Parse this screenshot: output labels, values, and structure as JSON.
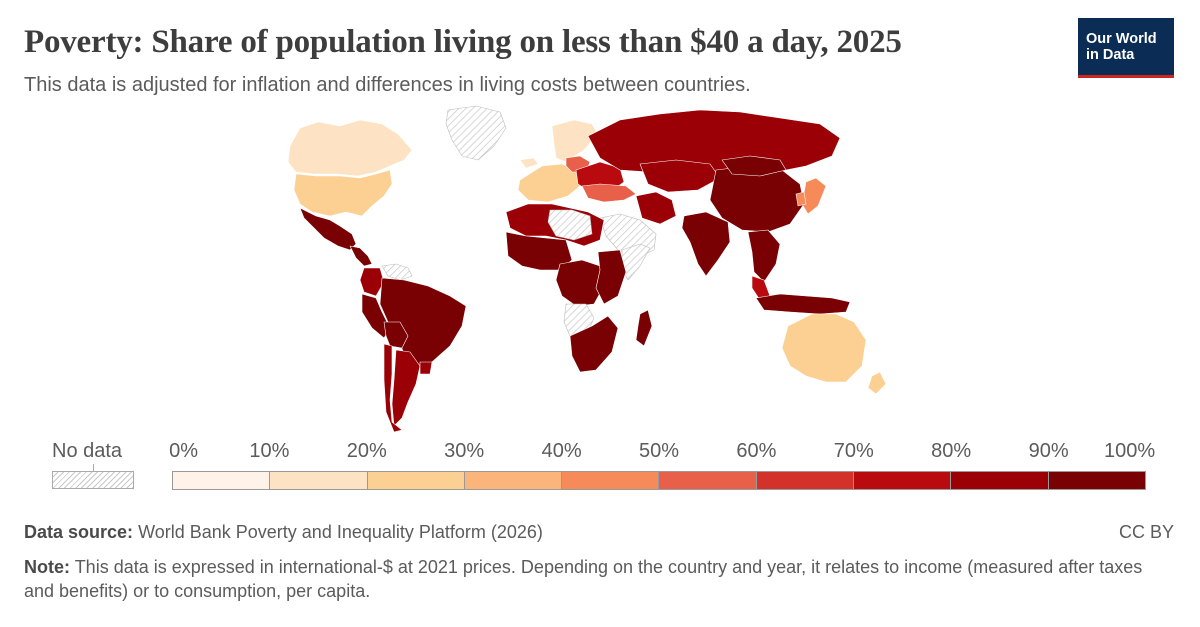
{
  "header": {
    "title": "Poverty: Share of population living on less than $40 a day, 2025",
    "subtitle": "This data is adjusted for inflation and differences in living costs between countries."
  },
  "logo": {
    "line1": "Our World",
    "line2": "in Data",
    "bg": "#0b2c55",
    "accent": "#ce261e"
  },
  "legend": {
    "no_data_label": "No data",
    "ticks": [
      "0%",
      "10%",
      "20%",
      "30%",
      "40%",
      "50%",
      "60%",
      "70%",
      "80%",
      "90%",
      "100%"
    ],
    "bin_colors": [
      "#fff3e9",
      "#fde3c3",
      "#fccf93",
      "#fbb47a",
      "#f68a58",
      "#e8604a",
      "#d3322a",
      "#b80a0f",
      "#9b0006",
      "#790003"
    ],
    "no_data_pattern": "diagonal-hatch-grey"
  },
  "chart_data": {
    "type": "choropleth",
    "unit": "%",
    "scale_range": [
      0,
      100
    ],
    "bins": [
      0,
      10,
      20,
      30,
      40,
      50,
      60,
      70,
      80,
      90,
      100
    ],
    "regions": [
      {
        "name": "Canada",
        "bin": "10-20%"
      },
      {
        "name": "United States",
        "bin": "20-30%"
      },
      {
        "name": "Mexico",
        "bin": "90-100%"
      },
      {
        "name": "Central America",
        "bin": "90-100%"
      },
      {
        "name": "Venezuela",
        "bin": "no data"
      },
      {
        "name": "Colombia",
        "bin": "80-90%"
      },
      {
        "name": "Peru",
        "bin": "90-100%"
      },
      {
        "name": "Brazil",
        "bin": "90-100%"
      },
      {
        "name": "Bolivia",
        "bin": "90-100%"
      },
      {
        "name": "Argentina",
        "bin": "80-90%"
      },
      {
        "name": "Chile",
        "bin": "80-90%"
      },
      {
        "name": "Uruguay",
        "bin": "80-90%"
      },
      {
        "name": "Greenland",
        "bin": "no data"
      },
      {
        "name": "Iceland",
        "bin": "10-20%"
      },
      {
        "name": "Norway",
        "bin": "10-20%"
      },
      {
        "name": "Western Europe",
        "bin": "20-30%"
      },
      {
        "name": "Poland",
        "bin": "50-60%"
      },
      {
        "name": "Eastern Europe",
        "bin": "70-80%"
      },
      {
        "name": "Russia",
        "bin": "80-90%"
      },
      {
        "name": "Turkey",
        "bin": "50-60%"
      },
      {
        "name": "Saudi Arabia",
        "bin": "no data"
      },
      {
        "name": "North Africa",
        "bin": "80-90%"
      },
      {
        "name": "Libya",
        "bin": "no data"
      },
      {
        "name": "West Africa",
        "bin": "90-100%"
      },
      {
        "name": "Central Africa",
        "bin": "90-100%"
      },
      {
        "name": "Somalia",
        "bin": "no data"
      },
      {
        "name": "East Africa",
        "bin": "90-100%"
      },
      {
        "name": "Angola",
        "bin": "no data"
      },
      {
        "name": "Southern Africa",
        "bin": "90-100%"
      },
      {
        "name": "Madagascar",
        "bin": "90-100%"
      },
      {
        "name": "Iran",
        "bin": "80-90%"
      },
      {
        "name": "Kazakhstan",
        "bin": "80-90%"
      },
      {
        "name": "India",
        "bin": "90-100%"
      },
      {
        "name": "China",
        "bin": "90-100%"
      },
      {
        "name": "Mongolia",
        "bin": "90-100%"
      },
      {
        "name": "Southeast Asia",
        "bin": "90-100%"
      },
      {
        "name": "Malaysia",
        "bin": "70-80%"
      },
      {
        "name": "Indonesia",
        "bin": "90-100%"
      },
      {
        "name": "Japan",
        "bin": "40-50%"
      },
      {
        "name": "South Korea",
        "bin": "40-50%"
      },
      {
        "name": "Australia",
        "bin": "20-30%"
      },
      {
        "name": "New Zealand",
        "bin": "20-30%"
      }
    ]
  },
  "footer": {
    "source_label": "Data source:",
    "source_text": "World Bank Poverty and Inequality Platform (2026)",
    "license": "CC BY",
    "note_label": "Note:",
    "note_text": "This data is expressed in international-$ at 2021 prices. Depending on the country and year, it relates to income (measured after taxes and benefits) or to consumption, per capita."
  }
}
